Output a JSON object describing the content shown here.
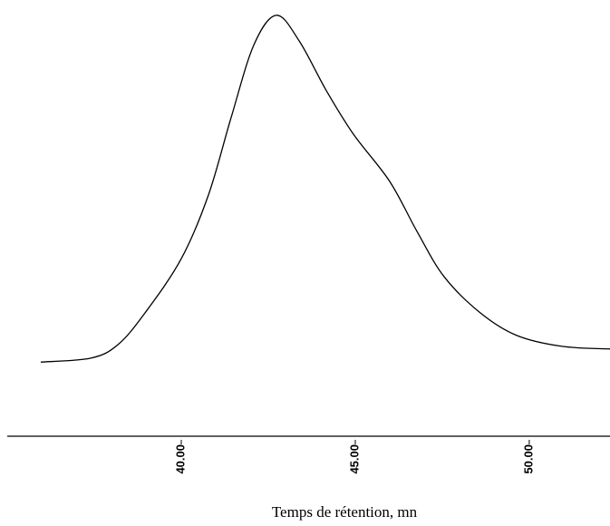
{
  "chart_data": {
    "type": "line",
    "xlabel": "Temps de rétention, mn",
    "x": [
      35.96,
      37.4,
      38.18,
      38.96,
      40.0,
      40.78,
      41.43,
      42.08,
      42.73,
      43.39,
      44.17,
      44.95,
      45.99,
      46.77,
      47.55,
      48.59,
      49.64,
      50.94,
      52.32
    ],
    "series": [
      {
        "color": "#000000",
        "values": [
          17.0,
          17.9,
          21.0,
          28.3,
          40.7,
          55.3,
          73.0,
          89.6,
          96.5,
          90.6,
          79.2,
          69.2,
          58.4,
          47.0,
          36.6,
          28.3,
          23.1,
          20.6,
          20.0
        ]
      }
    ],
    "xlim": [
      34.79,
      52.32
    ],
    "ylim": [
      0,
      100
    ],
    "xticks": [
      {
        "value": 40,
        "label": "40.00"
      },
      {
        "value": 45,
        "label": "45.00"
      },
      {
        "value": 50,
        "label": "50.00"
      }
    ]
  }
}
